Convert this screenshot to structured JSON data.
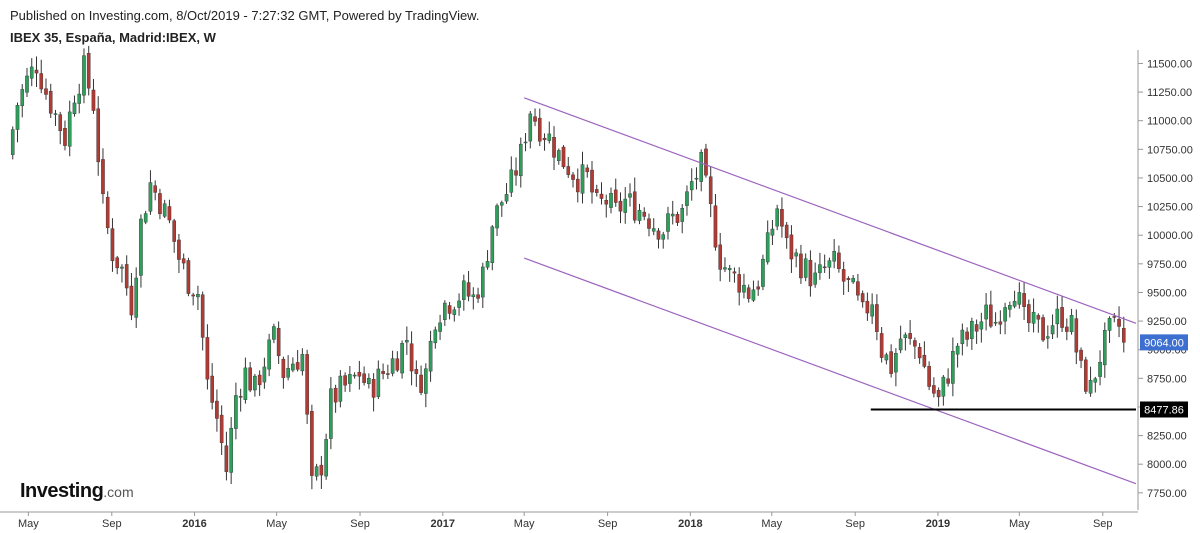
{
  "header": {
    "published": "Published on Investing.com, 8/Oct/2019 - 7:27:32 GMT, Powered by TradingView.",
    "symbol": "IBEX 35, España, Madrid:IBEX, W"
  },
  "logo": {
    "brand": "Investing",
    "suffix": ".com"
  },
  "chart_data": {
    "type": "candlestick",
    "title": "IBEX 35, España, Madrid:IBEX, W",
    "interval": "W",
    "x_range": [
      "2015-04-01",
      "2019-10-20"
    ],
    "ylim": [
      7600,
      11600
    ],
    "y_ticks": [
      7750,
      8000,
      8250,
      8500,
      8750,
      9000,
      9250,
      9500,
      9750,
      10000,
      10250,
      10500,
      10750,
      11000,
      11250,
      11500
    ],
    "x_ticks": [
      {
        "date": "2015-05-01",
        "label": "May",
        "bold": false
      },
      {
        "date": "2015-09-01",
        "label": "Sep",
        "bold": false
      },
      {
        "date": "2016-01-01",
        "label": "2016",
        "bold": true
      },
      {
        "date": "2016-05-01",
        "label": "May",
        "bold": false
      },
      {
        "date": "2016-09-01",
        "label": "Sep",
        "bold": false
      },
      {
        "date": "2017-01-01",
        "label": "2017",
        "bold": true
      },
      {
        "date": "2017-05-01",
        "label": "May",
        "bold": false
      },
      {
        "date": "2017-09-01",
        "label": "Sep",
        "bold": false
      },
      {
        "date": "2018-01-01",
        "label": "2018",
        "bold": true
      },
      {
        "date": "2018-05-01",
        "label": "May",
        "bold": false
      },
      {
        "date": "2018-09-01",
        "label": "Sep",
        "bold": false
      },
      {
        "date": "2019-01-01",
        "label": "2019",
        "bold": true
      },
      {
        "date": "2019-05-01",
        "label": "May",
        "bold": false
      },
      {
        "date": "2019-09-01",
        "label": "Sep",
        "bold": false
      }
    ],
    "close_path": [
      [
        "2015-04-01",
        10700
      ],
      [
        "2015-04-15",
        11150
      ],
      [
        "2015-04-29",
        11350
      ],
      [
        "2015-05-13",
        11500
      ],
      [
        "2015-05-27",
        11250
      ],
      [
        "2015-06-10",
        11050
      ],
      [
        "2015-06-24",
        10850
      ],
      [
        "2015-07-08",
        11250
      ],
      [
        "2015-07-22",
        11450
      ],
      [
        "2015-08-05",
        11150
      ],
      [
        "2015-08-19",
        10250
      ],
      [
        "2015-09-02",
        9850
      ],
      [
        "2015-09-16",
        9700
      ],
      [
        "2015-09-30",
        9400
      ],
      [
        "2015-10-14",
        10100
      ],
      [
        "2015-10-28",
        10450
      ],
      [
        "2015-11-11",
        10300
      ],
      [
        "2015-11-25",
        10100
      ],
      [
        "2015-12-09",
        9800
      ],
      [
        "2015-12-23",
        9600
      ],
      [
        "2016-01-06",
        9500
      ],
      [
        "2016-01-20",
        8700
      ],
      [
        "2016-02-03",
        8400
      ],
      [
        "2016-02-17",
        7950
      ],
      [
        "2016-03-02",
        8600
      ],
      [
        "2016-03-16",
        8800
      ],
      [
        "2016-03-30",
        8650
      ],
      [
        "2016-04-13",
        8900
      ],
      [
        "2016-04-27",
        9100
      ],
      [
        "2016-05-11",
        8800
      ],
      [
        "2016-05-25",
        8900
      ],
      [
        "2016-06-08",
        8950
      ],
      [
        "2016-06-22",
        7800
      ],
      [
        "2016-07-06",
        8000
      ],
      [
        "2016-07-20",
        8550
      ],
      [
        "2016-08-03",
        8650
      ],
      [
        "2016-08-17",
        8700
      ],
      [
        "2016-08-31",
        8800
      ],
      [
        "2016-09-14",
        8650
      ],
      [
        "2016-09-28",
        8750
      ],
      [
        "2016-10-12",
        8850
      ],
      [
        "2016-10-26",
        8950
      ],
      [
        "2016-11-09",
        9100
      ],
      [
        "2016-11-23",
        8700
      ],
      [
        "2016-12-07",
        8800
      ],
      [
        "2016-12-21",
        9300
      ],
      [
        "2017-01-04",
        9400
      ],
      [
        "2017-01-18",
        9450
      ],
      [
        "2017-02-01",
        9500
      ],
      [
        "2017-02-15",
        9450
      ],
      [
        "2017-03-01",
        9650
      ],
      [
        "2017-03-15",
        10100
      ],
      [
        "2017-03-29",
        10300
      ],
      [
        "2017-04-12",
        10450
      ],
      [
        "2017-04-26",
        10700
      ],
      [
        "2017-05-10",
        11100
      ],
      [
        "2017-05-24",
        10950
      ],
      [
        "2017-06-07",
        10850
      ],
      [
        "2017-06-21",
        10700
      ],
      [
        "2017-07-05",
        10600
      ],
      [
        "2017-07-19",
        10500
      ],
      [
        "2017-08-02",
        10500
      ],
      [
        "2017-08-16",
        10250
      ],
      [
        "2017-08-30",
        10300
      ],
      [
        "2017-09-13",
        10200
      ],
      [
        "2017-09-27",
        10300
      ],
      [
        "2017-10-11",
        10250
      ],
      [
        "2017-10-25",
        10200
      ],
      [
        "2017-11-08",
        10100
      ],
      [
        "2017-11-22",
        10050
      ],
      [
        "2017-12-06",
        10150
      ],
      [
        "2017-12-20",
        10200
      ],
      [
        "2018-01-03",
        10450
      ],
      [
        "2018-01-17",
        10600
      ],
      [
        "2018-01-31",
        10200
      ],
      [
        "2018-02-14",
        9800
      ],
      [
        "2018-02-28",
        9650
      ],
      [
        "2018-03-14",
        9600
      ],
      [
        "2018-03-28",
        9500
      ],
      [
        "2018-04-11",
        9600
      ],
      [
        "2018-04-25",
        9900
      ],
      [
        "2018-05-09",
        10250
      ],
      [
        "2018-05-23",
        9900
      ],
      [
        "2018-06-06",
        9800
      ],
      [
        "2018-06-20",
        9700
      ],
      [
        "2018-07-04",
        9600
      ],
      [
        "2018-07-18",
        9700
      ],
      [
        "2018-08-01",
        9750
      ],
      [
        "2018-08-15",
        9600
      ],
      [
        "2018-08-29",
        9500
      ],
      [
        "2018-09-12",
        9300
      ],
      [
        "2018-09-26",
        9450
      ],
      [
        "2018-10-10",
        9000
      ],
      [
        "2018-10-24",
        8850
      ],
      [
        "2018-11-07",
        9100
      ],
      [
        "2018-11-21",
        9050
      ],
      [
        "2018-12-05",
        9000
      ],
      [
        "2018-12-19",
        8700
      ],
      [
        "2019-01-02",
        8550
      ],
      [
        "2019-01-16",
        8800
      ],
      [
        "2019-01-30",
        9050
      ],
      [
        "2019-02-13",
        9100
      ],
      [
        "2019-02-27",
        9200
      ],
      [
        "2019-03-13",
        9300
      ],
      [
        "2019-03-27",
        9250
      ],
      [
        "2019-04-10",
        9450
      ],
      [
        "2019-04-24",
        9550
      ],
      [
        "2019-05-08",
        9250
      ],
      [
        "2019-05-22",
        9200
      ],
      [
        "2019-06-05",
        9150
      ],
      [
        "2019-06-19",
        9250
      ],
      [
        "2019-07-03",
        9300
      ],
      [
        "2019-07-17",
        9200
      ],
      [
        "2019-07-31",
        8800
      ],
      [
        "2019-08-14",
        8650
      ],
      [
        "2019-08-28",
        8950
      ],
      [
        "2019-09-11",
        9150
      ],
      [
        "2019-09-25",
        9200
      ],
      [
        "2019-10-08",
        9064
      ]
    ],
    "trendlines": [
      {
        "name": "channel-upper",
        "color": "#9c64bf",
        "from": [
          "2017-05-01",
          11200
        ],
        "to": [
          "2019-10-20",
          9230
        ]
      },
      {
        "name": "channel-lower",
        "color": "#9c64bf",
        "from": [
          "2017-05-01",
          9800
        ],
        "to": [
          "2019-10-20",
          7830
        ]
      },
      {
        "name": "support",
        "color": "#000000",
        "from": [
          "2018-09-24",
          8477.86
        ],
        "to": [
          "2019-10-20",
          8477.86
        ]
      }
    ],
    "price_labels": [
      {
        "value": 9064,
        "text": "9064.00",
        "bg": "#3d6fd0",
        "fg": "#ffffff"
      },
      {
        "value": 8477.86,
        "text": "8477.86",
        "bg": "#000000",
        "fg": "#ffffff"
      }
    ],
    "colors": {
      "up": "#2e9e5b",
      "down": "#b03a34",
      "axis": "#999999"
    }
  }
}
